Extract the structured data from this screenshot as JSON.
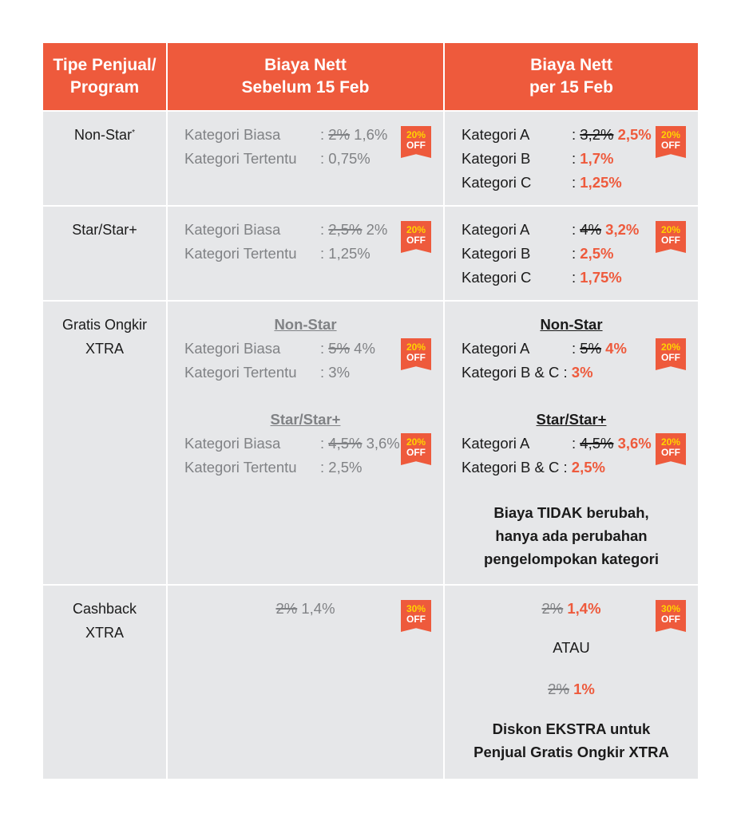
{
  "header": {
    "col1": [
      "Tipe Penjual/",
      "Program"
    ],
    "col2": [
      "Biaya Nett",
      "Sebelum 15 Feb"
    ],
    "col3": [
      "Biaya Nett",
      "per 15 Feb"
    ]
  },
  "rows": [
    {
      "program": "Non-Star",
      "program_mark": "*",
      "before": {
        "items": [
          {
            "label": "Kategori Biasa",
            "old": "2%",
            "new": " 1,6%"
          },
          {
            "label": "Kategori Tertentu",
            "old": "",
            "new": "0,75%"
          }
        ],
        "badge": {
          "pct": "20%",
          "off": "OFF"
        }
      },
      "after": {
        "items": [
          {
            "label": "Kategori A",
            "old": "3,2%",
            "new": "2,5%"
          },
          {
            "label": "Kategori B",
            "old": "",
            "new": "1,7%"
          },
          {
            "label": "Kategori C",
            "old": "",
            "new": "1,25%"
          }
        ],
        "badge": {
          "pct": "20%",
          "off": "OFF"
        }
      }
    },
    {
      "program": "Star/Star+",
      "before": {
        "items": [
          {
            "label": "Kategori Biasa",
            "old": "2,5%",
            "new": " 2%"
          },
          {
            "label": "Kategori Tertentu",
            "old": "",
            "new": "1,25%"
          }
        ],
        "badge": {
          "pct": "20%",
          "off": "OFF"
        }
      },
      "after": {
        "items": [
          {
            "label": "Kategori A",
            "old": "4%",
            "new": "3,2%"
          },
          {
            "label": "Kategori B",
            "old": "",
            "new": "2,5%"
          },
          {
            "label": "Kategori C",
            "old": "",
            "new": "1,75%"
          }
        ],
        "badge": {
          "pct": "20%",
          "off": "OFF"
        }
      }
    },
    {
      "program": [
        "Gratis Ongkir",
        "XTRA"
      ],
      "before": {
        "group1": {
          "title": "Non-Star",
          "items": [
            {
              "label": "Kategori Biasa",
              "old": "5%",
              "new": " 4%"
            },
            {
              "label": "Kategori Tertentu",
              "old": "",
              "new": "3%"
            }
          ],
          "badge": {
            "pct": "20%",
            "off": "OFF"
          }
        },
        "group2": {
          "title": "Star/Star+",
          "items": [
            {
              "label": "Kategori Biasa",
              "old": "4,5%",
              "new": " 3,6%"
            },
            {
              "label": "Kategori Tertentu",
              "old": "",
              "new": "2,5%"
            }
          ],
          "badge": {
            "pct": "20%",
            "off": "OFF"
          }
        }
      },
      "after": {
        "group1": {
          "title": "Non-Star",
          "items": [
            {
              "label": "Kategori A",
              "old": "5%",
              "new": "4%"
            },
            {
              "label": "Kategori B & C",
              "new": "3%"
            }
          ],
          "badge": {
            "pct": "20%",
            "off": "OFF"
          }
        },
        "group2": {
          "title": "Star/Star+",
          "items": [
            {
              "label": "Kategori A",
              "old": "4,5%",
              "new": "3,6%"
            },
            {
              "label": "Kategori B & C",
              "new": "2,5%"
            }
          ],
          "badge": {
            "pct": "20%",
            "off": "OFF"
          }
        },
        "note": [
          "Biaya TIDAK berubah,",
          "hanya ada perubahan",
          "pengelompokan kategori"
        ]
      }
    },
    {
      "program": [
        "Cashback",
        "XTRA"
      ],
      "before": {
        "old": "2%",
        "new": " 1,4%",
        "badge": {
          "pct": "30%",
          "off": "OFF"
        }
      },
      "after": {
        "line1": {
          "old": "2%",
          "new": "1,4%"
        },
        "or": "ATAU",
        "line2": {
          "old": "2%",
          "new": "1%"
        },
        "note": [
          "Diskon EKSTRA untuk",
          "Penjual Gratis Ongkir XTRA"
        ],
        "badge": {
          "pct": "30%",
          "off": "OFF"
        }
      }
    }
  ],
  "colors": {
    "header_bg": "#ee5a3c",
    "cell_bg": "#e6e7e9",
    "accent": "#ee5a3c",
    "badge_pct": "#ffd400"
  }
}
